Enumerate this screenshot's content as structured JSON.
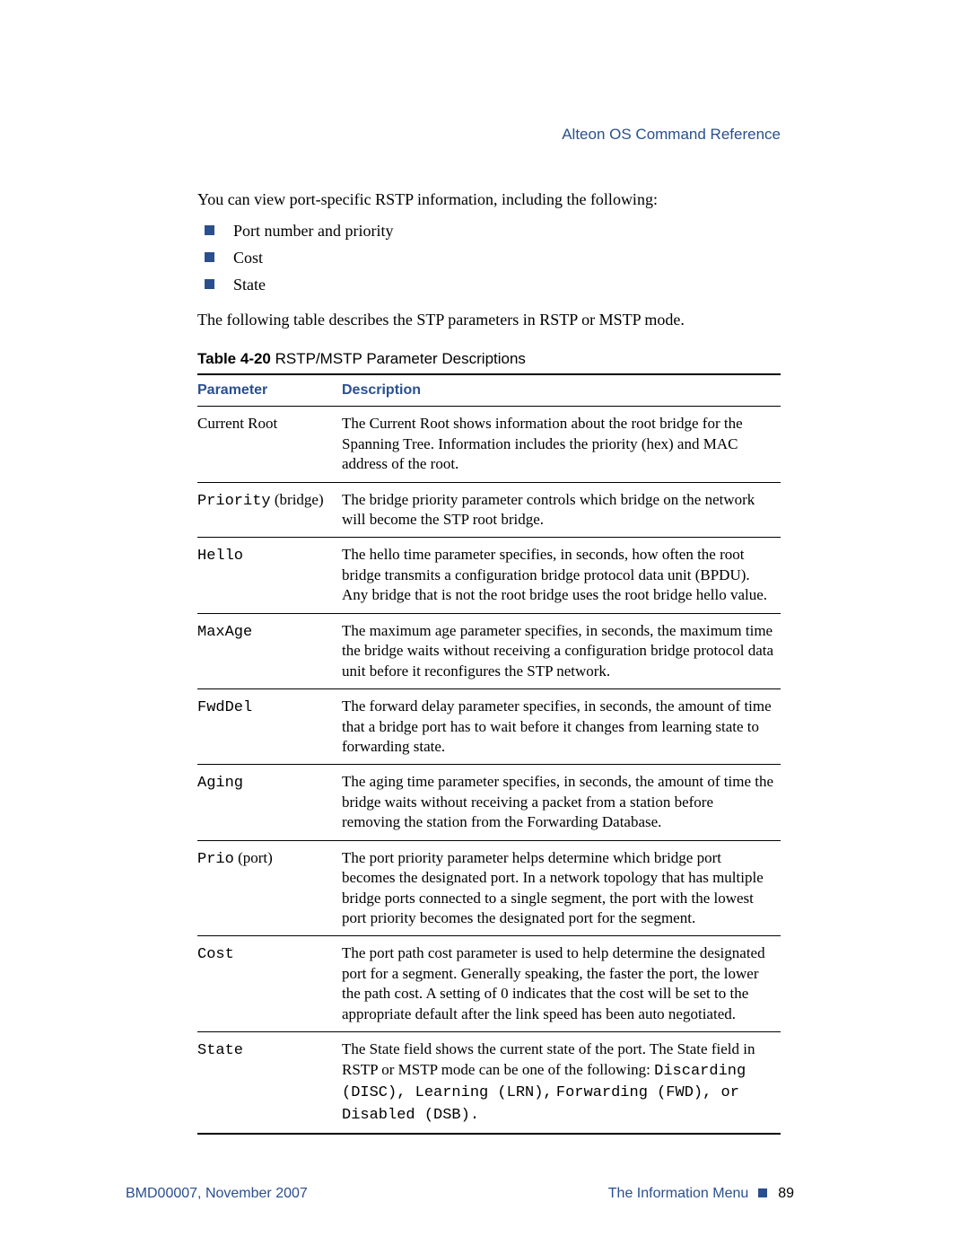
{
  "header": {
    "right": "Alteon OS  Command Reference"
  },
  "intro": "You can view port-specific RSTP information, including the following:",
  "bullets": [
    "Port number and priority",
    "Cost",
    "State"
  ],
  "pre_table": "The following table describes the STP parameters in RSTP or MSTP mode.",
  "table": {
    "caption_prefix": "Table 4-20",
    "caption_rest": "  RSTP/MSTP Parameter Descriptions",
    "head": {
      "col1": "Parameter",
      "col2": "Description"
    },
    "rows": [
      {
        "param": "Current Root",
        "mono": false,
        "desc": "The Current Root shows information about the root bridge for the Spanning Tree. Information includes the priority (hex) and MAC address of the root."
      },
      {
        "param": "Priority",
        "param_suffix": " (bridge)",
        "mono": true,
        "desc": "The bridge priority parameter controls which bridge on the network will become the STP root bridge."
      },
      {
        "param": "Hello",
        "mono": true,
        "desc": "The hello time parameter specifies, in seconds, how often the root bridge transmits a configuration bridge protocol data unit (BPDU). Any bridge that is not the root bridge uses the root bridge hello value."
      },
      {
        "param": "MaxAge",
        "mono": true,
        "desc": "The maximum age parameter specifies, in seconds, the maximum time the bridge waits without receiving a configuration bridge protocol data unit before it reconfigures the STP network."
      },
      {
        "param": "FwdDel",
        "mono": true,
        "desc": "The forward delay parameter specifies, in seconds, the amount of time that a bridge port has to wait before it changes from learning state to forwarding state."
      },
      {
        "param": "Aging",
        "mono": true,
        "desc": "The aging time parameter specifies, in seconds, the amount of time the bridge waits without receiving a packet from a station before removing the station from the Forwarding Database."
      },
      {
        "param": "Prio",
        "param_suffix": " (port)",
        "mono": true,
        "desc": "The port priority parameter helps determine which bridge port becomes the designated port. In a network topology that has multiple bridge ports connected to a single segment, the port with the lowest port priority becomes the designated port for the segment."
      },
      {
        "param": "Cost",
        "mono": true,
        "desc": "The port path cost parameter is used to help determine the designated port for a segment. Generally speaking, the faster the port, the lower the path cost. A setting of 0 indicates that the cost will be set to the appropriate default after the link speed has been auto negotiated."
      },
      {
        "param": "State",
        "mono": true,
        "desc_pre": "The State field shows the current state of the port. The State field in RSTP or MSTP mode can be one of the following: ",
        "desc_states": "Discarding (DISC), Learning (LRN),",
        "desc_states2": "Forwarding (FWD), or Disabled (DSB)."
      }
    ]
  },
  "footer": {
    "left": "BMD00007, November 2007",
    "right_label": "The Information Menu",
    "page": "89"
  }
}
